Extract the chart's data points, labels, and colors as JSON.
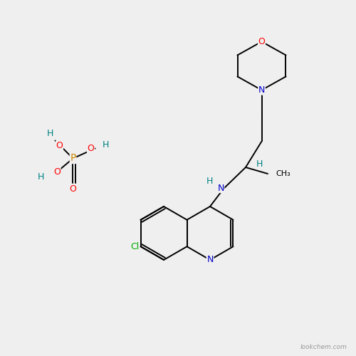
{
  "bg_color": "#efefef",
  "bond_color": "#000000",
  "atom_colors": {
    "O": "#ff0000",
    "N": "#0000cc",
    "P": "#cc8800",
    "Cl": "#00aa00",
    "H": "#008080",
    "C": "#000000"
  },
  "watermark": "lookchem.com"
}
